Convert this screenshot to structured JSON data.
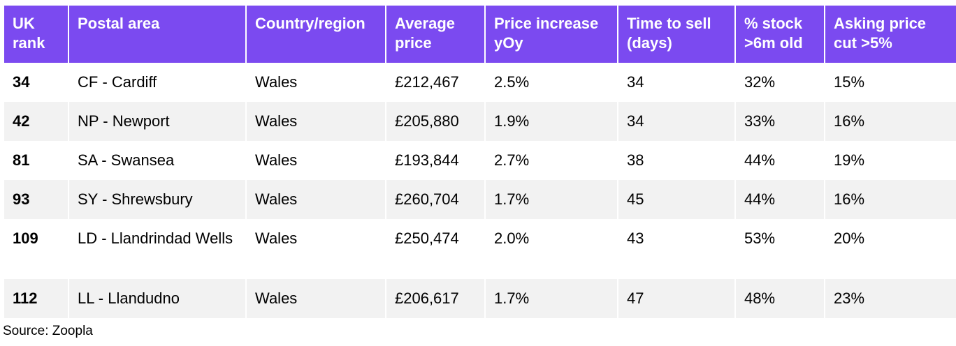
{
  "table": {
    "headers": [
      "UK rank",
      "Postal area",
      "Country/region",
      "Average price",
      "Price increase yOy",
      "Time to sell (days)",
      "% stock >6m old",
      "Asking price cut >5%"
    ],
    "rows": [
      [
        "34",
        "CF - Cardiff",
        "Wales",
        "£212,467",
        "2.5%",
        "34",
        "32%",
        "15%"
      ],
      [
        "42",
        "NP - Newport",
        "Wales",
        "£205,880",
        "1.9%",
        "34",
        "33%",
        "16%"
      ],
      [
        "81",
        "SA - Swansea",
        "Wales",
        "£193,844",
        "2.7%",
        "38",
        "44%",
        "19%"
      ],
      [
        "93",
        "SY - Shrewsbury",
        "Wales",
        "£260,704",
        "1.7%",
        "45",
        "44%",
        "16%"
      ],
      [
        "109",
        "LD - Llandrindad Wells",
        "Wales",
        "£250,474",
        "2.0%",
        "43",
        "53%",
        "20%"
      ],
      [
        "112",
        "LL - Llandudno",
        "Wales",
        "£206,617",
        "1.7%",
        "47",
        "48%",
        "23%"
      ]
    ]
  },
  "source": "Source: Zoopla",
  "colors": {
    "header_bg": "#7b4af0",
    "header_text": "#ffffff",
    "row_alt_bg": "#f2f2f2"
  }
}
